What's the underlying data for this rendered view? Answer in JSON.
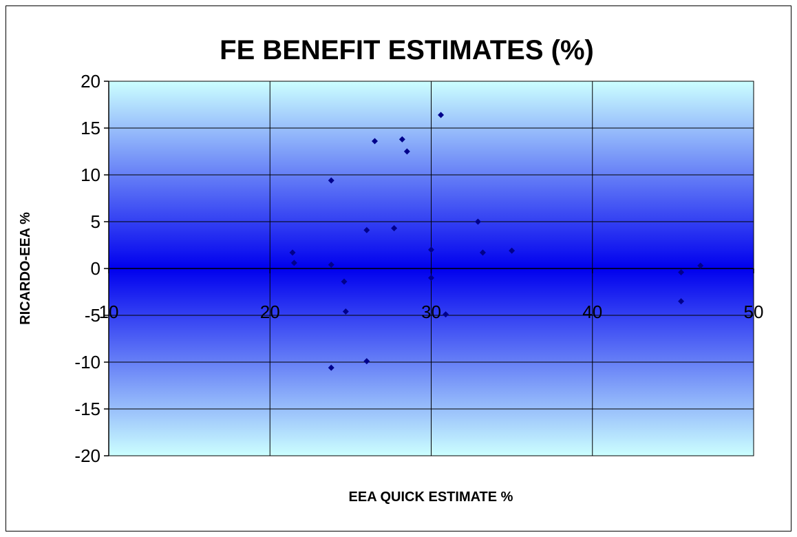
{
  "chart_data": {
    "type": "scatter",
    "title": "FE BENEFIT ESTIMATES (%)",
    "xlabel": "EEA QUICK ESTIMATE %",
    "ylabel": "RICARDO-EEA %",
    "xlim": [
      10,
      50
    ],
    "ylim": [
      -20,
      20
    ],
    "x_ticks": [
      10,
      20,
      30,
      40,
      50
    ],
    "y_ticks": [
      -20,
      -15,
      -10,
      -5,
      0,
      5,
      10,
      15,
      20
    ],
    "grid": true,
    "legend": "none",
    "point_color": "#00008B",
    "points": [
      {
        "x": 21.4,
        "y": 1.7
      },
      {
        "x": 21.5,
        "y": 0.6
      },
      {
        "x": 23.8,
        "y": 9.4
      },
      {
        "x": 23.8,
        "y": 0.4
      },
      {
        "x": 23.8,
        "y": -10.6
      },
      {
        "x": 24.6,
        "y": -1.4
      },
      {
        "x": 24.7,
        "y": -4.6
      },
      {
        "x": 26.0,
        "y": 4.1
      },
      {
        "x": 26.0,
        "y": -9.9
      },
      {
        "x": 26.5,
        "y": 13.6
      },
      {
        "x": 27.7,
        "y": 4.3
      },
      {
        "x": 28.2,
        "y": 13.8
      },
      {
        "x": 28.5,
        "y": 12.5
      },
      {
        "x": 30.0,
        "y": 2.0
      },
      {
        "x": 30.0,
        "y": -1.0
      },
      {
        "x": 30.6,
        "y": 16.4
      },
      {
        "x": 30.9,
        "y": -4.9
      },
      {
        "x": 32.9,
        "y": 5.0
      },
      {
        "x": 33.2,
        "y": 1.7
      },
      {
        "x": 35.0,
        "y": 1.9
      },
      {
        "x": 45.5,
        "y": -0.4
      },
      {
        "x": 45.5,
        "y": -3.5
      },
      {
        "x": 46.7,
        "y": 0.3
      }
    ]
  }
}
